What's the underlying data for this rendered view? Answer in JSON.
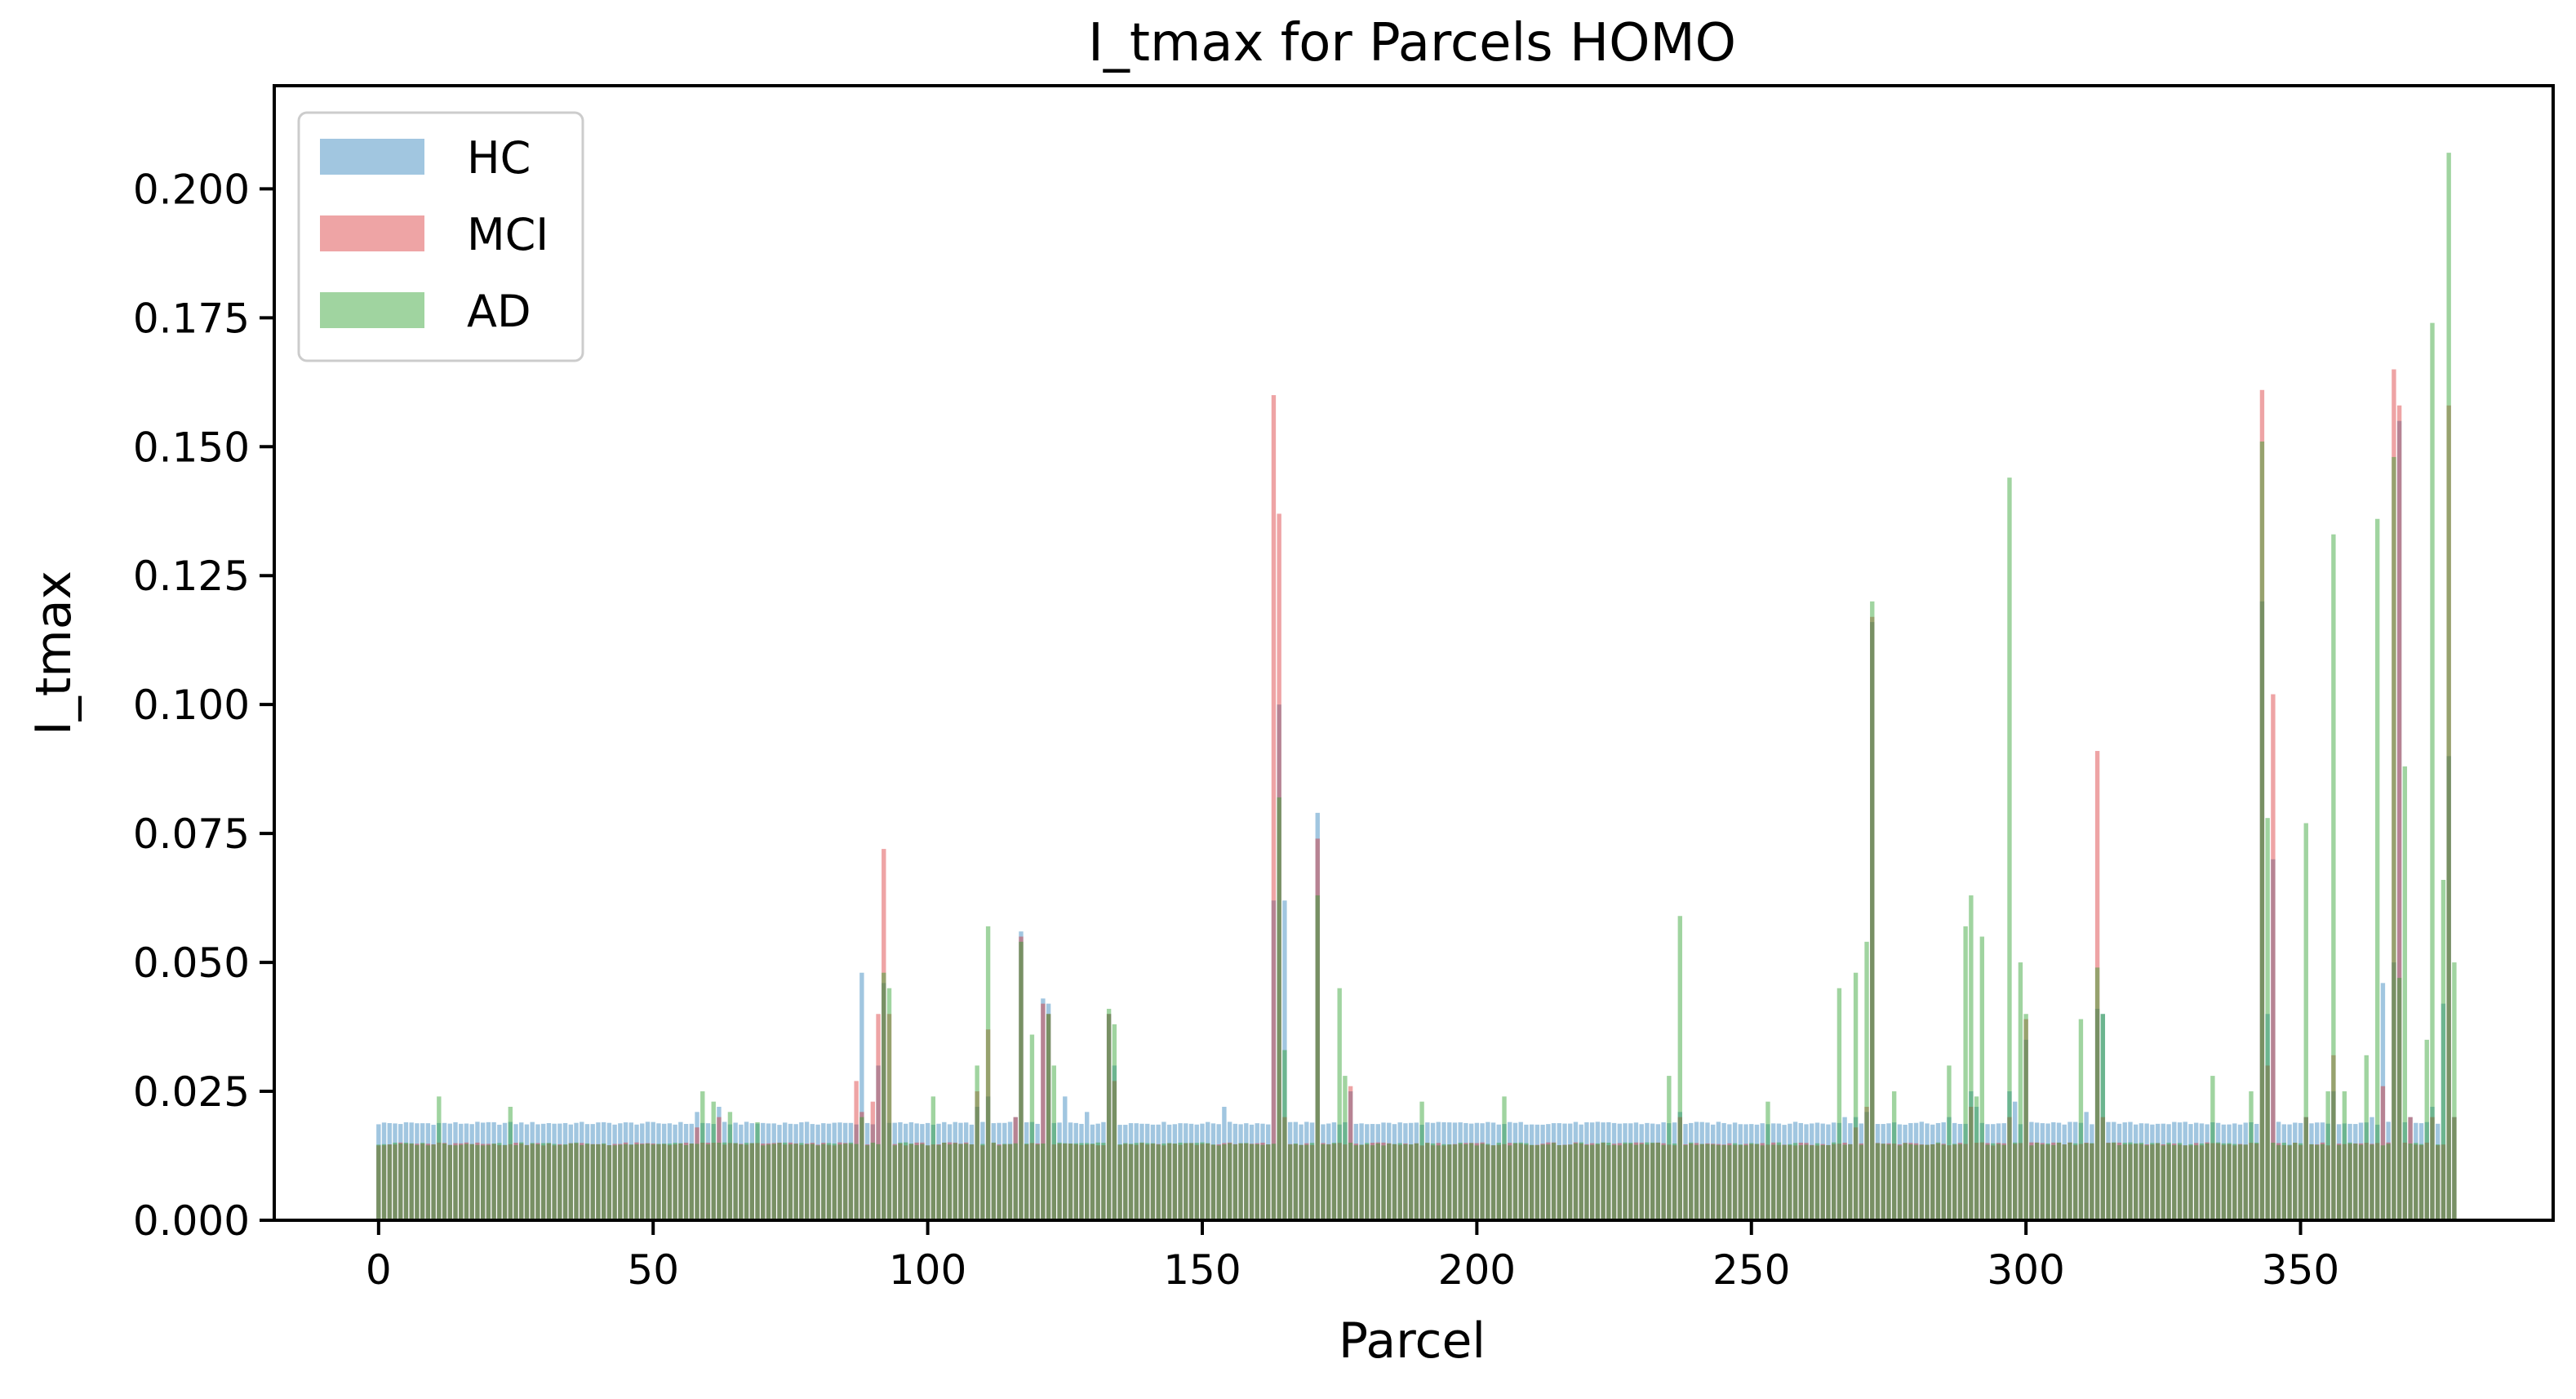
{
  "chart_data": {
    "type": "bar",
    "title": "I_tmax for Parcels HOMO",
    "xlabel": "Parcel",
    "ylabel": "I_tmax",
    "xlim": [
      -19,
      396
    ],
    "ylim": [
      0,
      0.22
    ],
    "x_ticks": [
      0,
      50,
      100,
      150,
      200,
      250,
      300,
      350
    ],
    "x_tick_labels": [
      "0",
      "50",
      "100",
      "150",
      "200",
      "250",
      "300",
      "350"
    ],
    "y_ticks": [
      0,
      0.025,
      0.05,
      0.075,
      0.1,
      0.125,
      0.15,
      0.175,
      0.2
    ],
    "y_tick_labels": [
      "0.000",
      "0.025",
      "0.050",
      "0.075",
      "0.100",
      "0.125",
      "0.150",
      "0.175",
      "0.200"
    ],
    "grid": false,
    "legend_position": "top-left",
    "n_parcels": 379,
    "series": [
      {
        "name": "HC",
        "color": "#1f77b4",
        "opacity": 0.42,
        "baseline": 0.0188,
        "peaks": [
          [
            58,
            0.021
          ],
          [
            62,
            0.022
          ],
          [
            88,
            0.048
          ],
          [
            91,
            0.03
          ],
          [
            92,
            0.046
          ],
          [
            109,
            0.022
          ],
          [
            111,
            0.024
          ],
          [
            116,
            0.02
          ],
          [
            117,
            0.056
          ],
          [
            121,
            0.043
          ],
          [
            122,
            0.042
          ],
          [
            125,
            0.024
          ],
          [
            129,
            0.021
          ],
          [
            133,
            0.04
          ],
          [
            134,
            0.03
          ],
          [
            154,
            0.022
          ],
          [
            163,
            0.062
          ],
          [
            164,
            0.1
          ],
          [
            165,
            0.062
          ],
          [
            171,
            0.079
          ],
          [
            177,
            0.025
          ],
          [
            237,
            0.021
          ],
          [
            267,
            0.02
          ],
          [
            269,
            0.02
          ],
          [
            271,
            0.021
          ],
          [
            272,
            0.116
          ],
          [
            286,
            0.02
          ],
          [
            290,
            0.025
          ],
          [
            291,
            0.022
          ],
          [
            297,
            0.025
          ],
          [
            298,
            0.023
          ],
          [
            300,
            0.035
          ],
          [
            311,
            0.021
          ],
          [
            313,
            0.041
          ],
          [
            314,
            0.04
          ],
          [
            343,
            0.12
          ],
          [
            344,
            0.04
          ],
          [
            345,
            0.07
          ],
          [
            351,
            0.02
          ],
          [
            356,
            0.025
          ],
          [
            363,
            0.02
          ],
          [
            365,
            0.046
          ],
          [
            367,
            0.05
          ],
          [
            368,
            0.155
          ],
          [
            370,
            0.02
          ],
          [
            374,
            0.022
          ],
          [
            376,
            0.042
          ],
          [
            377,
            0.09
          ],
          [
            378,
            0.02
          ]
        ]
      },
      {
        "name": "MCI",
        "color": "#d62728",
        "opacity": 0.42,
        "baseline": 0.0148,
        "peaks": [
          [
            58,
            0.018
          ],
          [
            62,
            0.02
          ],
          [
            87,
            0.027
          ],
          [
            88,
            0.021
          ],
          [
            90,
            0.023
          ],
          [
            91,
            0.04
          ],
          [
            92,
            0.072
          ],
          [
            93,
            0.04
          ],
          [
            109,
            0.025
          ],
          [
            111,
            0.037
          ],
          [
            116,
            0.02
          ],
          [
            117,
            0.055
          ],
          [
            121,
            0.042
          ],
          [
            122,
            0.04
          ],
          [
            133,
            0.04
          ],
          [
            134,
            0.027
          ],
          [
            163,
            0.16
          ],
          [
            164,
            0.137
          ],
          [
            165,
            0.02
          ],
          [
            171,
            0.074
          ],
          [
            177,
            0.026
          ],
          [
            237,
            0.02
          ],
          [
            269,
            0.018
          ],
          [
            271,
            0.022
          ],
          [
            272,
            0.117
          ],
          [
            290,
            0.022
          ],
          [
            297,
            0.02
          ],
          [
            300,
            0.039
          ],
          [
            313,
            0.091
          ],
          [
            314,
            0.02
          ],
          [
            343,
            0.161
          ],
          [
            344,
            0.03
          ],
          [
            345,
            0.102
          ],
          [
            351,
            0.02
          ],
          [
            356,
            0.032
          ],
          [
            365,
            0.026
          ],
          [
            367,
            0.165
          ],
          [
            368,
            0.158
          ],
          [
            370,
            0.02
          ],
          [
            374,
            0.02
          ],
          [
            377,
            0.158
          ],
          [
            378,
            0.02
          ]
        ]
      },
      {
        "name": "AD",
        "color": "#2ca02c",
        "opacity": 0.45,
        "baseline": 0.0148,
        "peaks": [
          [
            11,
            0.024
          ],
          [
            24,
            0.022
          ],
          [
            59,
            0.025
          ],
          [
            61,
            0.023
          ],
          [
            64,
            0.021
          ],
          [
            69,
            0.019
          ],
          [
            88,
            0.02
          ],
          [
            92,
            0.048
          ],
          [
            93,
            0.045
          ],
          [
            101,
            0.024
          ],
          [
            109,
            0.03
          ],
          [
            111,
            0.057
          ],
          [
            117,
            0.054
          ],
          [
            119,
            0.036
          ],
          [
            122,
            0.04
          ],
          [
            123,
            0.03
          ],
          [
            133,
            0.041
          ],
          [
            134,
            0.038
          ],
          [
            164,
            0.082
          ],
          [
            165,
            0.033
          ],
          [
            171,
            0.063
          ],
          [
            175,
            0.045
          ],
          [
            176,
            0.028
          ],
          [
            190,
            0.023
          ],
          [
            205,
            0.024
          ],
          [
            235,
            0.028
          ],
          [
            237,
            0.059
          ],
          [
            253,
            0.023
          ],
          [
            266,
            0.045
          ],
          [
            269,
            0.048
          ],
          [
            271,
            0.054
          ],
          [
            272,
            0.12
          ],
          [
            276,
            0.025
          ],
          [
            286,
            0.03
          ],
          [
            289,
            0.057
          ],
          [
            290,
            0.063
          ],
          [
            291,
            0.024
          ],
          [
            292,
            0.055
          ],
          [
            297,
            0.144
          ],
          [
            299,
            0.05
          ],
          [
            300,
            0.04
          ],
          [
            310,
            0.039
          ],
          [
            313,
            0.049
          ],
          [
            314,
            0.04
          ],
          [
            334,
            0.028
          ],
          [
            341,
            0.025
          ],
          [
            343,
            0.151
          ],
          [
            344,
            0.078
          ],
          [
            351,
            0.077
          ],
          [
            355,
            0.025
          ],
          [
            356,
            0.133
          ],
          [
            358,
            0.025
          ],
          [
            362,
            0.032
          ],
          [
            364,
            0.136
          ],
          [
            367,
            0.148
          ],
          [
            368,
            0.047
          ],
          [
            369,
            0.088
          ],
          [
            373,
            0.035
          ],
          [
            374,
            0.174
          ],
          [
            376,
            0.066
          ],
          [
            377,
            0.207
          ],
          [
            378,
            0.05
          ]
        ]
      }
    ]
  }
}
